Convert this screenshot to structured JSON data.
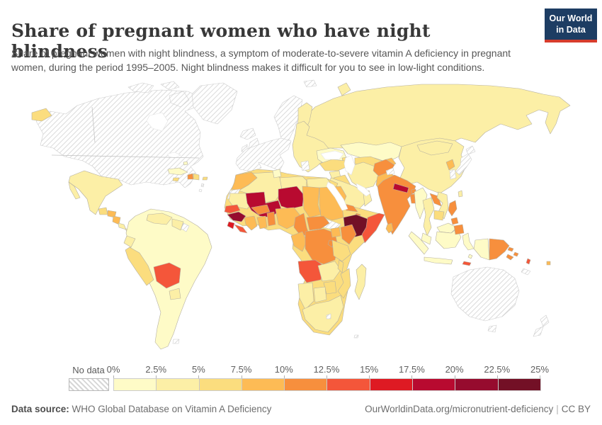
{
  "header": {
    "title": "Share of pregnant women who have night blindness",
    "subtitle": "Share of pregnant women with night blindness, a symptom of moderate-to-severe vitamin A deficiency in pregnant women, during the period 1995–2005. Night blindness makes it difficult for you to see in low-light conditions.",
    "logo": {
      "line1": "Our World",
      "line2": "in Data",
      "bg_color": "#1d3d63",
      "accent_color": "#d73c2c"
    }
  },
  "legend": {
    "no_data_label": "No data",
    "tick_labels": [
      "0%",
      "2.5%",
      "5%",
      "7.5%",
      "10%",
      "12.5%",
      "15%",
      "17.5%",
      "20%",
      "22.5%",
      "25%"
    ],
    "bin_colors": {
      "b1": "#fefbc7",
      "b2": "#fcefa6",
      "b3": "#fbdd7e",
      "b4": "#fdbb55",
      "b5": "#f78f3d",
      "b6": "#f4563a",
      "b7": "#de1a23",
      "b8": "#b80a30",
      "b9": "#960b2e",
      "b10": "#731026"
    },
    "bins": [
      {
        "bin": "b1",
        "range": "0–2.5%"
      },
      {
        "bin": "b2",
        "range": "2.5–5%"
      },
      {
        "bin": "b3",
        "range": "5–7.5%"
      },
      {
        "bin": "b4",
        "range": "7.5–10%"
      },
      {
        "bin": "b5",
        "range": "10–12.5%"
      },
      {
        "bin": "b6",
        "range": "12.5–15%"
      },
      {
        "bin": "b7",
        "range": "15–17.5%"
      },
      {
        "bin": "b8",
        "range": "17.5–20%"
      },
      {
        "bin": "b9",
        "range": "20–22.5%"
      },
      {
        "bin": "b10",
        "range": "22.5–25%"
      }
    ]
  },
  "footer": {
    "source_label": "Data source:",
    "source_text": "WHO Global Database on Vitamin A Deficiency",
    "link_text": "OurWorldinData.org/micronutrient-deficiency",
    "license_text": "CC BY"
  },
  "map": {
    "countries": {
      "north-america": "nodata",
      "canadian-arctic": "nodata",
      "greenland": "nodata",
      "iceland": "nodata",
      "united-kingdom": "nodata",
      "ireland": "nodata",
      "scandinavia": "nodata",
      "svalbard": "nodata",
      "western-europe": "nodata",
      "greece": "nodata",
      "japan": "nodata",
      "south-korea": "nodata",
      "australia": "nodata",
      "new-zealand": "nodata",
      "new-caledonia": "nodata",
      "south-sudan": "nodata",
      "western-sahara": "nodata",
      "french-guiana": "nodata",
      "falkland-islands": "nodata",
      "lesser-antilles": "nodata",
      "kashmir": "nodata",
      "lesotho": "nodata",
      "southern-island": "nodata",
      "russia": "b2",
      "russia-chukotka-west": "b3",
      "novaya-zemlya": "b2",
      "finland": "b2",
      "eastern-europe": "b2",
      "ukraine": "b1",
      "kazakhstan": "b1",
      "central-asia": "b3",
      "kyrgyzstan-tajikistan": "b4",
      "caucasus": "b3",
      "china": "b2",
      "mongolia": "b2",
      "north-korea": "b4",
      "taiwan": "b2",
      "turkey": "b3",
      "syria": "b2",
      "iraq": "b3",
      "iran": "b2",
      "saudi-arabia": "b2",
      "yemen": "b4",
      "oman": "b2",
      "afghanistan": "b5",
      "pakistan": "b4",
      "india": "b5",
      "nepal": "b8",
      "bhutan": "b5",
      "bangladesh": "b5",
      "sri-lanka": "b4",
      "myanmar": "b1",
      "thailand": "b2",
      "laos": "b5",
      "vietnam": "b2",
      "cambodia": "b3",
      "malaysia": "b1",
      "indonesia": "b1",
      "timor-leste": "b6",
      "philippines": "b5",
      "papua-new-guinea": "b5",
      "solomon-islands": "b5",
      "vanuatu": "b6",
      "fiji": "b4",
      "mexico": "b2",
      "guatemala": "b3",
      "honduras": "b4",
      "nicaragua": "b4",
      "costa-rica": "b2",
      "panama": "b2",
      "cuba": "b1",
      "jamaica": "b3",
      "haiti": "b5",
      "dominican-republic": "b3",
      "puerto-rico": "b3",
      "bahamas": "b1",
      "south-america": "b1",
      "venezuela": "b2",
      "guyana-suriname": "b2",
      "ecuador": "b2",
      "peru": "b3",
      "bolivia": "b6",
      "paraguay": "b2",
      "africa-base": "b3",
      "morocco": "b4",
      "tunisia": "b1",
      "algeria": "b2",
      "libya": "b2",
      "egypt": "b2",
      "mauritania": "b2",
      "mali": "b8",
      "niger": "b8",
      "chad": "b4",
      "sudan": "b4",
      "eritrea": "b5",
      "djibouti": "b5",
      "ethiopia": "b10",
      "somalia": "b6",
      "senegal": "b6",
      "guinea": "b9",
      "sierra-leone": "b7",
      "liberia": "b6",
      "ivory-coast": "b4",
      "ghana": "b4",
      "togo-benin": "b5",
      "burkina-faso": "b5",
      "nigeria": "b4",
      "cameroon": "b5",
      "central-african-republic": "b5",
      "gabon-congo": "b4",
      "drc": "b5",
      "uganda": "b4",
      "kenya": "b5",
      "rwanda-burundi": "b5",
      "tanzania": "b3",
      "angola": "b6",
      "zambia": "b2",
      "malawi": "b3",
      "mozambique": "b3",
      "zimbabwe": "b3",
      "namibia": "b2",
      "botswana": "b2",
      "south-africa": "b2",
      "madagascar": "b2"
    }
  }
}
